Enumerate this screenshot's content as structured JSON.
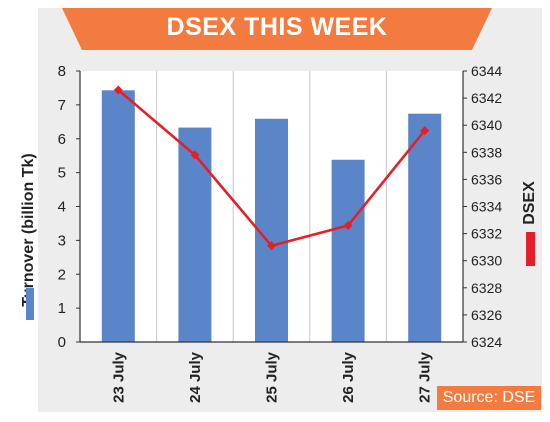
{
  "chart_data": {
    "type": "bar+line",
    "title": "DSEX THIS WEEK",
    "categories": [
      "23 July",
      "24 July",
      "25 July",
      "26 July",
      "27 July"
    ],
    "series": [
      {
        "name": "Turnover (billion Tk)",
        "type": "bar",
        "axis": "left",
        "values": [
          7.43,
          6.33,
          6.59,
          5.38,
          6.74
        ]
      },
      {
        "name": "DSEX",
        "type": "line",
        "axis": "right",
        "values": [
          6342.6,
          6337.8,
          6331.1,
          6332.6,
          6339.6
        ]
      }
    ],
    "ylabel": "Turnover (billion Tk)",
    "ylabel_right": "DSEX",
    "ylim": [
      0,
      8
    ],
    "ylim_right": [
      6324,
      6344
    ],
    "yticks": [
      "0",
      "1",
      "2",
      "3",
      "4",
      "5",
      "6",
      "7",
      "8"
    ],
    "yticks_right": [
      "6324",
      "6326",
      "6328",
      "6330",
      "6332",
      "6334",
      "6336",
      "6338",
      "6340",
      "6342",
      "6344"
    ],
    "grid": "vertical",
    "colors": {
      "bar": "#5a86c9",
      "line": "#e3202a",
      "banner": "#f47b3f"
    }
  },
  "source": "Source: DSE"
}
